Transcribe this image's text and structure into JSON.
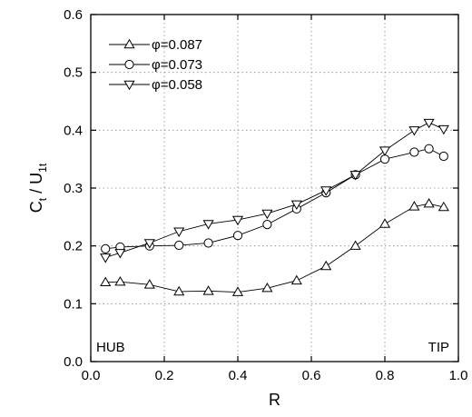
{
  "chart_data": {
    "type": "line",
    "title": "",
    "xlabel": "R",
    "ylabel": {
      "main": "C",
      "sub1": "t",
      "sep": " / U",
      "sub2": "1t"
    },
    "xlim": [
      0.0,
      1.0
    ],
    "ylim": [
      0.0,
      0.6
    ],
    "x_ticks": [
      "0.0",
      "0.2",
      "0.4",
      "0.6",
      "0.8",
      "1.0"
    ],
    "y_ticks": [
      "0.0",
      "0.1",
      "0.2",
      "0.3",
      "0.4",
      "0.5",
      "0.6"
    ],
    "grid": true,
    "legend_position": "top-left",
    "annotations": {
      "left": "HUB",
      "right": "TIP"
    },
    "series": [
      {
        "name": "φ=0.087",
        "marker": "triangle-up",
        "x": [
          0.04,
          0.08,
          0.16,
          0.24,
          0.32,
          0.4,
          0.48,
          0.56,
          0.64,
          0.72,
          0.8,
          0.88,
          0.92,
          0.96
        ],
        "y": [
          0.137,
          0.138,
          0.133,
          0.121,
          0.122,
          0.12,
          0.127,
          0.14,
          0.165,
          0.2,
          0.238,
          0.268,
          0.273,
          0.267
        ]
      },
      {
        "name": "φ=0.073",
        "marker": "circle",
        "x": [
          0.04,
          0.08,
          0.16,
          0.24,
          0.32,
          0.4,
          0.48,
          0.56,
          0.64,
          0.72,
          0.8,
          0.88,
          0.92,
          0.96
        ],
        "y": [
          0.195,
          0.198,
          0.2,
          0.201,
          0.205,
          0.218,
          0.237,
          0.264,
          0.292,
          0.323,
          0.35,
          0.362,
          0.368,
          0.355
        ]
      },
      {
        "name": "φ=0.058",
        "marker": "triangle-down",
        "x": [
          0.04,
          0.08,
          0.16,
          0.24,
          0.32,
          0.4,
          0.48,
          0.56,
          0.64,
          0.72,
          0.8,
          0.88,
          0.92,
          0.96
        ],
        "y": [
          0.18,
          0.188,
          0.205,
          0.225,
          0.238,
          0.245,
          0.256,
          0.272,
          0.296,
          0.323,
          0.365,
          0.4,
          0.413,
          0.402
        ]
      }
    ]
  }
}
